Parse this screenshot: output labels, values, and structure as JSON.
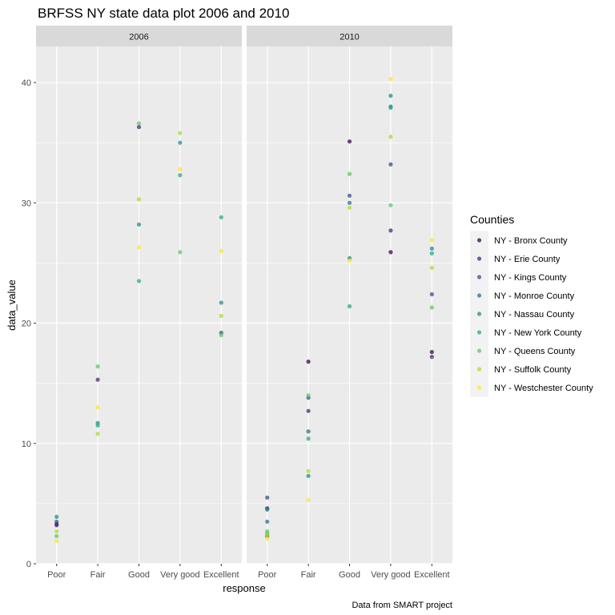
{
  "chart_data": {
    "type": "scatter",
    "title": "BRFSS NY state data plot 2006 and 2010",
    "xlabel": "response",
    "ylabel": "data_value",
    "caption": "Data from SMART project",
    "categories": [
      "Poor",
      "Fair",
      "Good",
      "Very good",
      "Excellent"
    ],
    "ylim": [
      0,
      43
    ],
    "yticks": [
      0,
      10,
      20,
      30,
      40
    ],
    "grid": true,
    "legend": {
      "title": "Counties",
      "position": "right",
      "entries": [
        {
          "name": "NY - Bronx County",
          "color": "#440154"
        },
        {
          "name": "NY - Erie County",
          "color": "#472D7B"
        },
        {
          "name": "NY - Kings County",
          "color": "#3B528B"
        },
        {
          "name": "NY - Monroe County",
          "color": "#2C728E"
        },
        {
          "name": "NY - Nassau County",
          "color": "#21908C"
        },
        {
          "name": "NY - New York County",
          "color": "#27AD81"
        },
        {
          "name": "NY - Queens County",
          "color": "#5DC863"
        },
        {
          "name": "NY - Suffolk County",
          "color": "#AADC32"
        },
        {
          "name": "NY - Westchester County",
          "color": "#FDE725"
        }
      ]
    },
    "panels": [
      {
        "strip": "2006",
        "points": [
          {
            "x": "Poor",
            "county": "NY - Bronx County",
            "y": 3.3
          },
          {
            "x": "Poor",
            "county": "NY - Erie County",
            "y": 3.2
          },
          {
            "x": "Poor",
            "county": "NY - Kings County",
            "y": 3.5
          },
          {
            "x": "Poor",
            "county": "NY - Nassau County",
            "y": 3.9
          },
          {
            "x": "Poor",
            "county": "NY - Queens County",
            "y": 2.3
          },
          {
            "x": "Poor",
            "county": "NY - Suffolk County",
            "y": 2.7
          },
          {
            "x": "Poor",
            "county": "NY - Westchester County",
            "y": 1.9
          },
          {
            "x": "Fair",
            "county": "NY - Erie County",
            "y": 15.3
          },
          {
            "x": "Fair",
            "county": "NY - Nassau County",
            "y": 11.7
          },
          {
            "x": "Fair",
            "county": "NY - New York County",
            "y": 11.5
          },
          {
            "x": "Fair",
            "county": "NY - Queens County",
            "y": 16.4
          },
          {
            "x": "Fair",
            "county": "NY - Suffolk County",
            "y": 10.8
          },
          {
            "x": "Fair",
            "county": "NY - Westchester County",
            "y": 13.0
          },
          {
            "x": "Good",
            "county": "NY - Erie County",
            "y": 36.3
          },
          {
            "x": "Good",
            "county": "NY - Nassau County",
            "y": 28.2
          },
          {
            "x": "Good",
            "county": "NY - New York County",
            "y": 23.5
          },
          {
            "x": "Good",
            "county": "NY - Queens County",
            "y": 36.6
          },
          {
            "x": "Good",
            "county": "NY - Suffolk County",
            "y": 30.3
          },
          {
            "x": "Good",
            "county": "NY - Westchester County",
            "y": 26.3
          },
          {
            "x": "Very good",
            "county": "NY - Nassau County",
            "y": 35.0
          },
          {
            "x": "Very good",
            "county": "NY - New York County",
            "y": 32.3
          },
          {
            "x": "Very good",
            "county": "NY - Queens County",
            "y": 25.9
          },
          {
            "x": "Very good",
            "county": "NY - Suffolk County",
            "y": 35.8
          },
          {
            "x": "Very good",
            "county": "NY - Westchester County",
            "y": 32.8
          },
          {
            "x": "Excellent",
            "county": "NY - Kings County",
            "y": 19.2
          },
          {
            "x": "Excellent",
            "county": "NY - Nassau County",
            "y": 21.7
          },
          {
            "x": "Excellent",
            "county": "NY - New York County",
            "y": 28.8
          },
          {
            "x": "Excellent",
            "county": "NY - Queens County",
            "y": 19.0
          },
          {
            "x": "Excellent",
            "county": "NY - Suffolk County",
            "y": 20.6
          },
          {
            "x": "Excellent",
            "county": "NY - Westchester County",
            "y": 26.0
          }
        ]
      },
      {
        "strip": "2010",
        "points": [
          {
            "x": "Poor",
            "county": "NY - Bronx County",
            "y": 4.6
          },
          {
            "x": "Poor",
            "county": "NY - Erie County",
            "y": 2.3
          },
          {
            "x": "Poor",
            "county": "NY - Kings County",
            "y": 5.5
          },
          {
            "x": "Poor",
            "county": "NY - Monroe County",
            "y": 3.5
          },
          {
            "x": "Poor",
            "county": "NY - Nassau County",
            "y": 4.5
          },
          {
            "x": "Poor",
            "county": "NY - New York County",
            "y": 2.5
          },
          {
            "x": "Poor",
            "county": "NY - Queens County",
            "y": 2.7
          },
          {
            "x": "Poor",
            "county": "NY - Suffolk County",
            "y": 2.4
          },
          {
            "x": "Poor",
            "county": "NY - Westchester County",
            "y": 2.1
          },
          {
            "x": "Fair",
            "county": "NY - Bronx County",
            "y": 16.8
          },
          {
            "x": "Fair",
            "county": "NY - Erie County",
            "y": 12.7
          },
          {
            "x": "Fair",
            "county": "NY - Kings County",
            "y": 13.8
          },
          {
            "x": "Fair",
            "county": "NY - Monroe County",
            "y": 11.0
          },
          {
            "x": "Fair",
            "county": "NY - Nassau County",
            "y": 7.3
          },
          {
            "x": "Fair",
            "county": "NY - New York County",
            "y": 10.4
          },
          {
            "x": "Fair",
            "county": "NY - Queens County",
            "y": 14.0
          },
          {
            "x": "Fair",
            "county": "NY - Suffolk County",
            "y": 7.7
          },
          {
            "x": "Fair",
            "county": "NY - Westchester County",
            "y": 5.3
          },
          {
            "x": "Good",
            "county": "NY - Bronx County",
            "y": 35.1
          },
          {
            "x": "Good",
            "county": "NY - Kings County",
            "y": 30.6
          },
          {
            "x": "Good",
            "county": "NY - Monroe County",
            "y": 30.0
          },
          {
            "x": "Good",
            "county": "NY - Nassau County",
            "y": 25.4
          },
          {
            "x": "Good",
            "county": "NY - New York County",
            "y": 21.4
          },
          {
            "x": "Good",
            "county": "NY - Queens County",
            "y": 32.4
          },
          {
            "x": "Good",
            "county": "NY - Suffolk County",
            "y": 29.6
          },
          {
            "x": "Good",
            "county": "NY - Westchester County",
            "y": 25.2
          },
          {
            "x": "Very good",
            "county": "NY - Bronx County",
            "y": 25.9
          },
          {
            "x": "Very good",
            "county": "NY - Erie County",
            "y": 27.7
          },
          {
            "x": "Very good",
            "county": "NY - Kings County",
            "y": 33.2
          },
          {
            "x": "Very good",
            "county": "NY - Monroe County",
            "y": 38.0
          },
          {
            "x": "Very good",
            "county": "NY - Nassau County",
            "y": 38.9
          },
          {
            "x": "Very good",
            "county": "NY - New York County",
            "y": 37.9
          },
          {
            "x": "Very good",
            "county": "NY - Queens County",
            "y": 29.8
          },
          {
            "x": "Very good",
            "county": "NY - Suffolk County",
            "y": 35.5
          },
          {
            "x": "Very good",
            "county": "NY - Westchester County",
            "y": 40.3
          },
          {
            "x": "Excellent",
            "county": "NY - Bronx County",
            "y": 17.6
          },
          {
            "x": "Excellent",
            "county": "NY - Erie County",
            "y": 17.2
          },
          {
            "x": "Excellent",
            "county": "NY - Kings County",
            "y": 22.4
          },
          {
            "x": "Excellent",
            "county": "NY - Nassau County",
            "y": 26.2
          },
          {
            "x": "Excellent",
            "county": "NY - New York County",
            "y": 25.8
          },
          {
            "x": "Excellent",
            "county": "NY - Queens County",
            "y": 21.3
          },
          {
            "x": "Excellent",
            "county": "NY - Suffolk County",
            "y": 24.6
          },
          {
            "x": "Excellent",
            "county": "NY - Westchester County",
            "y": 26.9
          }
        ]
      }
    ]
  }
}
